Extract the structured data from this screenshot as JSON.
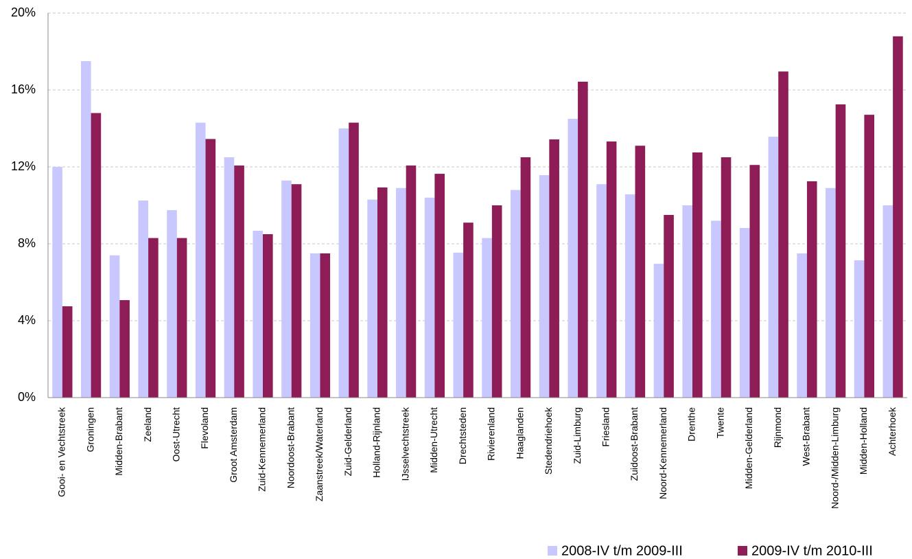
{
  "chart_data": {
    "type": "bar",
    "categories": [
      "Gooi- en Vechtstreek",
      "Groningen",
      "Midden-Brabant",
      "Zeeland",
      "Oost-Utrecht",
      "Flevoland",
      "Groot Amsterdam",
      "Zuid-Kennemerland",
      "Noordoost-Brabant",
      "Zaanstreek/Waterland",
      "Zuid-Gelderland",
      "Holland-Rijnland",
      "IJsselvechtstreek",
      "Midden-Utrecht",
      "Drechtsteden",
      "Rivierenland",
      "Haaglanden",
      "Stedendriehoek",
      "Zuid-Limburg",
      "Friesland",
      "Zuidoost-Brabant",
      "Noord-Kennemerland",
      "Drenthe",
      "Twente",
      "Midden-Gelderland",
      "Rijnmond",
      "West-Brabant",
      "Noord-/Midden-Limburg",
      "Midden-Holland",
      "Achterhoek"
    ],
    "series": [
      {
        "name": "2008-IV t/m 2009-III",
        "color": "#c8c8ff",
        "values": [
          12.0,
          17.5,
          7.4,
          10.25,
          9.75,
          14.3,
          12.5,
          8.68,
          11.29,
          7.5,
          14.0,
          10.3,
          10.9,
          10.4,
          7.54,
          8.3,
          10.8,
          11.57,
          14.5,
          11.1,
          10.57,
          6.96,
          10.0,
          9.2,
          8.82,
          13.57,
          7.5,
          10.9,
          7.14,
          10.0
        ]
      },
      {
        "name": "2009-IV t/m 2010-III",
        "color": "#8e1d57",
        "values": [
          4.75,
          14.8,
          5.07,
          8.3,
          8.3,
          13.45,
          12.07,
          8.5,
          11.1,
          7.5,
          14.3,
          10.93,
          12.07,
          11.64,
          9.1,
          10.0,
          12.5,
          13.43,
          16.43,
          13.32,
          13.1,
          9.5,
          12.75,
          12.5,
          12.1,
          16.96,
          11.25,
          15.25,
          14.71,
          18.79
        ]
      }
    ],
    "ylim": [
      0,
      20
    ],
    "yticks": [
      {
        "value": 0,
        "label": "0%"
      },
      {
        "value": 4,
        "label": "4%"
      },
      {
        "value": 8,
        "label": "8%"
      },
      {
        "value": 12,
        "label": "12%"
      },
      {
        "value": 16,
        "label": "16%"
      },
      {
        "value": 20,
        "label": "20%"
      }
    ],
    "grid": true,
    "legend": "bottom-right"
  }
}
